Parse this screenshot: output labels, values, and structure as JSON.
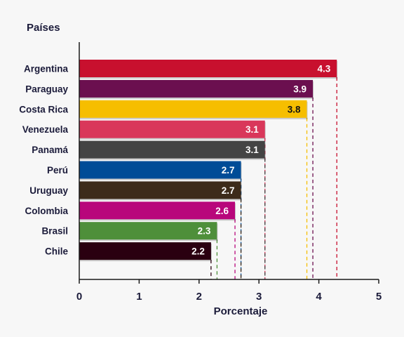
{
  "chart_data": {
    "type": "bar",
    "orientation": "horizontal",
    "ytitle": "Países",
    "xlabel": "Porcentaje",
    "xlim": [
      0,
      5
    ],
    "xticks": [
      0,
      1,
      2,
      3,
      4,
      5
    ],
    "grid": false,
    "legend": "none",
    "categories": [
      "Argentina",
      "Paraguay",
      "Costa Rica",
      "Venezuela",
      "Panamá",
      "Perú",
      "Uruguay",
      "Colombia",
      "Brasil",
      "Chile"
    ],
    "values": [
      4.3,
      3.9,
      3.8,
      3.1,
      3.1,
      2.7,
      2.7,
      2.6,
      2.3,
      2.2
    ],
    "value_labels": [
      "4.3",
      "3.9",
      "3.8",
      "3.1",
      "3.1",
      "2.7",
      "2.7",
      "2.6",
      "2.3",
      "2.2"
    ],
    "colors": [
      "#c8102e",
      "#6b0f4f",
      "#f6be00",
      "#d9375a",
      "#444444",
      "#004c97",
      "#3d2b1a",
      "#b8067b",
      "#4e8f3a",
      "#2a0010"
    ],
    "label_colors": [
      "#ffffff",
      "#ffffff",
      "#111111",
      "#ffffff",
      "#ffffff",
      "#ffffff",
      "#ffffff",
      "#ffffff",
      "#ffffff",
      "#ffffff"
    ]
  }
}
